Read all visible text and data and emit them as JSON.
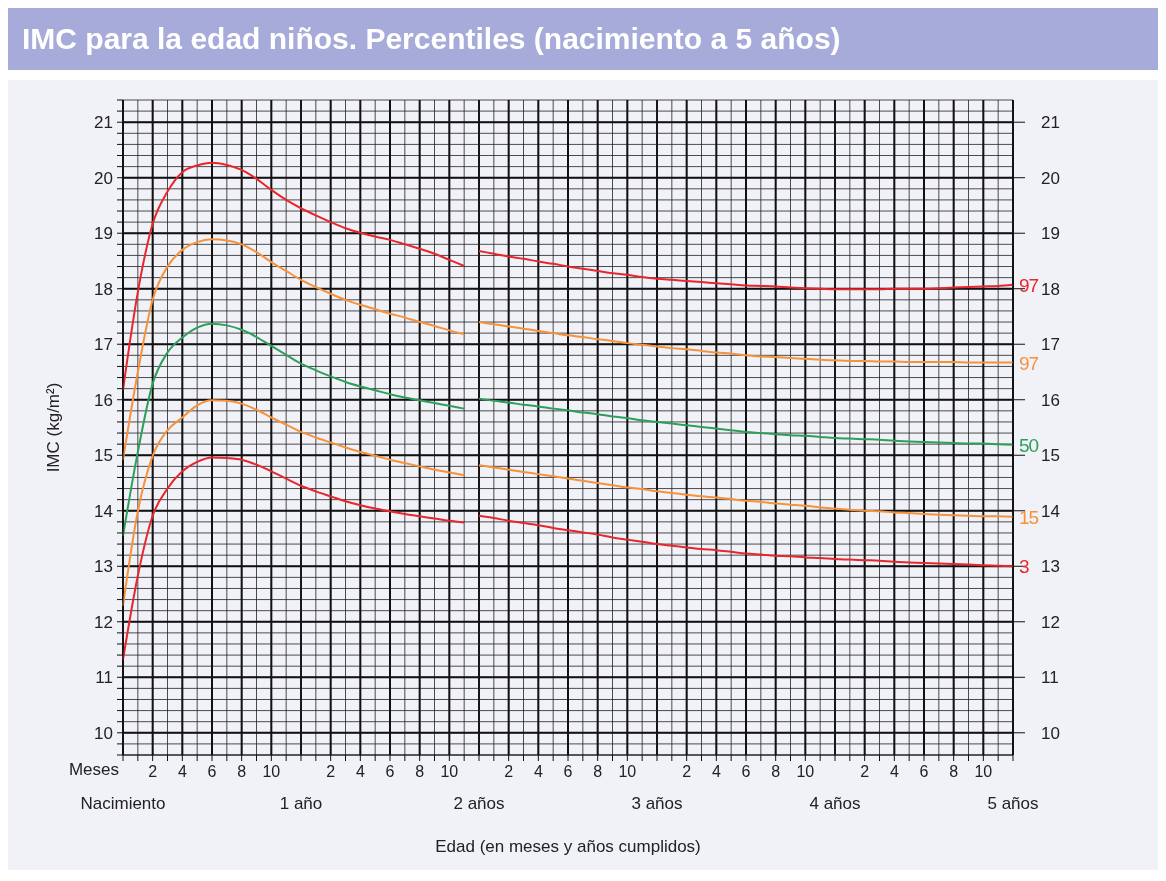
{
  "chart_data": {
    "type": "line",
    "title": "IMC para la edad niños. Percentiles (nacimiento a 5 años)",
    "xlabel": "Edad (en meses y años cumplidos)",
    "ylabel": "IMC (kg/m²)",
    "annotations": [
      "Meses"
    ],
    "categories": [
      null,
      null,
      "2",
      null,
      "4",
      null,
      "6",
      null,
      "8",
      null,
      "10",
      null,
      null,
      null,
      "2",
      null,
      "4",
      null,
      "6",
      null,
      "8",
      null,
      "10",
      null,
      null,
      null,
      "2",
      null,
      "4",
      null,
      "6",
      null,
      "8",
      null,
      "10",
      null,
      null,
      null,
      "2",
      null,
      "4",
      null,
      "6",
      null,
      "8",
      null,
      "10",
      null,
      null,
      null,
      "2",
      null,
      "4",
      null,
      "6",
      null,
      "8",
      null,
      "10",
      null,
      null
    ],
    "series": [
      {
        "color": "#e8262b",
        "values": [
          16.18,
          17.94,
          19.17,
          19.75,
          20.1,
          20.22,
          20.27,
          20.23,
          20.14,
          19.98,
          19.78,
          19.6,
          19.45,
          19.32,
          19.2,
          19.09,
          19.01,
          18.94,
          18.88,
          18.8,
          18.72,
          18.63,
          18.52,
          18.41,
          null,
          null,
          null,
          null,
          null,
          null,
          null,
          null,
          null,
          null,
          null,
          null,
          null,
          null,
          null,
          null,
          null,
          null,
          null,
          null,
          null,
          null,
          null,
          null,
          null,
          null,
          null,
          null,
          null,
          null,
          null,
          null,
          null,
          null,
          null,
          null,
          null
        ]
      },
      {
        "name": "97",
        "color": "#e8262b",
        "values": [
          null,
          null,
          null,
          null,
          null,
          null,
          null,
          null,
          null,
          null,
          null,
          null,
          null,
          null,
          null,
          null,
          null,
          null,
          null,
          null,
          null,
          null,
          null,
          null,
          18.68,
          18.63,
          18.58,
          18.54,
          18.49,
          18.45,
          18.4,
          18.36,
          18.32,
          18.28,
          18.25,
          18.21,
          18.18,
          18.16,
          18.14,
          18.12,
          18.1,
          18.08,
          18.06,
          18.05,
          18.04,
          18.02,
          18.01,
          18.0,
          17.99,
          17.99,
          17.99,
          17.99,
          18.0,
          18.0,
          18.0,
          18.01,
          18.02,
          18.03,
          18.04,
          18.05,
          18.07
        ]
      },
      {
        "color": "#f7923a",
        "values": [
          14.92,
          16.5,
          17.8,
          18.4,
          18.7,
          18.84,
          18.89,
          18.87,
          18.8,
          18.66,
          18.48,
          18.32,
          18.16,
          18.03,
          17.91,
          17.8,
          17.71,
          17.63,
          17.55,
          17.48,
          17.4,
          17.33,
          17.25,
          17.18,
          null,
          null,
          null,
          null,
          null,
          null,
          null,
          null,
          null,
          null,
          null,
          null,
          null,
          null,
          null,
          null,
          null,
          null,
          null,
          null,
          null,
          null,
          null,
          null,
          null,
          null,
          null,
          null,
          null,
          null,
          null,
          null,
          null,
          null,
          null,
          null,
          null
        ]
      },
      {
        "name": "97",
        "color": "#f7923a",
        "values": [
          null,
          null,
          null,
          null,
          null,
          null,
          null,
          null,
          null,
          null,
          null,
          null,
          null,
          null,
          null,
          null,
          null,
          null,
          null,
          null,
          null,
          null,
          null,
          null,
          17.4,
          17.36,
          17.32,
          17.28,
          17.24,
          17.2,
          17.16,
          17.13,
          17.09,
          17.06,
          17.02,
          16.99,
          16.96,
          16.93,
          16.91,
          16.88,
          16.85,
          16.83,
          16.8,
          16.78,
          16.77,
          16.75,
          16.74,
          16.72,
          16.71,
          16.7,
          16.7,
          16.69,
          16.69,
          16.68,
          16.68,
          16.68,
          16.68,
          16.67,
          16.67,
          16.67,
          16.67
        ]
      },
      {
        "color": "#2e9e5b",
        "values": [
          13.55,
          15.06,
          16.29,
          16.85,
          17.12,
          17.3,
          17.37,
          17.34,
          17.26,
          17.13,
          16.97,
          16.81,
          16.65,
          16.53,
          16.42,
          16.32,
          16.24,
          16.17,
          16.1,
          16.04,
          15.99,
          15.94,
          15.89,
          15.84,
          null,
          null,
          null,
          null,
          null,
          null,
          null,
          null,
          null,
          null,
          null,
          null,
          null,
          null,
          null,
          null,
          null,
          null,
          null,
          null,
          null,
          null,
          null,
          null,
          null,
          null,
          null,
          null,
          null,
          null,
          null,
          null,
          null,
          null,
          null,
          null,
          null
        ]
      },
      {
        "name": "50",
        "color": "#2e9e5b",
        "values": [
          null,
          null,
          null,
          null,
          null,
          null,
          null,
          null,
          null,
          null,
          null,
          null,
          null,
          null,
          null,
          null,
          null,
          null,
          null,
          null,
          null,
          null,
          null,
          null,
          16.02,
          15.98,
          15.95,
          15.91,
          15.88,
          15.84,
          15.81,
          15.77,
          15.74,
          15.7,
          15.67,
          15.63,
          15.6,
          15.57,
          15.54,
          15.51,
          15.48,
          15.45,
          15.42,
          15.4,
          15.38,
          15.36,
          15.35,
          15.33,
          15.31,
          15.3,
          15.29,
          15.28,
          15.26,
          15.25,
          15.24,
          15.23,
          15.22,
          15.21,
          15.21,
          15.2,
          15.19
        ]
      },
      {
        "color": "#f7923a",
        "values": [
          12.29,
          13.99,
          14.99,
          15.45,
          15.68,
          15.9,
          15.99,
          15.98,
          15.93,
          15.82,
          15.68,
          15.55,
          15.42,
          15.32,
          15.23,
          15.14,
          15.06,
          14.99,
          14.92,
          14.86,
          14.8,
          14.74,
          14.69,
          14.64,
          null,
          null,
          null,
          null,
          null,
          null,
          null,
          null,
          null,
          null,
          null,
          null,
          null,
          null,
          null,
          null,
          null,
          null,
          null,
          null,
          null,
          null,
          null,
          null,
          null,
          null,
          null,
          null,
          null,
          null,
          null,
          null,
          null,
          null,
          null,
          null,
          null
        ]
      },
      {
        "name": "15",
        "color": "#f7923a",
        "values": [
          null,
          null,
          null,
          null,
          null,
          null,
          null,
          null,
          null,
          null,
          null,
          null,
          null,
          null,
          null,
          null,
          null,
          null,
          null,
          null,
          null,
          null,
          null,
          null,
          14.82,
          14.78,
          14.74,
          14.7,
          14.66,
          14.62,
          14.58,
          14.54,
          14.5,
          14.46,
          14.42,
          14.39,
          14.35,
          14.32,
          14.29,
          14.26,
          14.24,
          14.21,
          14.18,
          14.16,
          14.13,
          14.11,
          14.09,
          14.06,
          14.04,
          14.02,
          14.0,
          13.99,
          13.97,
          13.96,
          13.94,
          13.93,
          13.92,
          13.91,
          13.9,
          13.9,
          13.89
        ]
      },
      {
        "color": "#e8262b",
        "values": [
          11.32,
          12.83,
          13.91,
          14.4,
          14.71,
          14.88,
          14.96,
          14.95,
          14.92,
          14.83,
          14.71,
          14.58,
          14.45,
          14.35,
          14.26,
          14.17,
          14.1,
          14.04,
          13.99,
          13.94,
          13.9,
          13.86,
          13.82,
          13.79,
          null,
          null,
          null,
          null,
          null,
          null,
          null,
          null,
          null,
          null,
          null,
          null,
          null,
          null,
          null,
          null,
          null,
          null,
          null,
          null,
          null,
          null,
          null,
          null,
          null,
          null,
          null,
          null,
          null,
          null,
          null,
          null,
          null,
          null,
          null,
          null,
          null
        ]
      },
      {
        "name": "3",
        "color": "#e8262b",
        "values": [
          null,
          null,
          null,
          null,
          null,
          null,
          null,
          null,
          null,
          null,
          null,
          null,
          null,
          null,
          null,
          null,
          null,
          null,
          null,
          null,
          null,
          null,
          null,
          null,
          13.91,
          13.87,
          13.82,
          13.78,
          13.74,
          13.69,
          13.65,
          13.61,
          13.57,
          13.52,
          13.48,
          13.44,
          13.4,
          13.37,
          13.34,
          13.31,
          13.29,
          13.26,
          13.23,
          13.21,
          13.19,
          13.18,
          13.16,
          13.15,
          13.13,
          13.12,
          13.11,
          13.1,
          13.08,
          13.07,
          13.06,
          13.05,
          13.04,
          13.03,
          13.02,
          13.01,
          13.0
        ]
      }
    ],
    "x2lim": [
      0,
      5
    ],
    "x2ticks": [
      {
        "value": 0,
        "label": "Nacimiento"
      },
      {
        "value": 1,
        "label": "1 año"
      },
      {
        "value": 2,
        "label": "2 años"
      },
      {
        "value": 3,
        "label": "3 años"
      },
      {
        "value": 4,
        "label": "4 años"
      },
      {
        "value": 5,
        "label": "5 años"
      }
    ],
    "ylim": [
      9.6,
      21.4
    ],
    "yticks": [
      {
        "value": 9.6,
        "label": null
      },
      {
        "value": 9.8,
        "label": null
      },
      10,
      {
        "value": 10.2,
        "label": null
      },
      {
        "value": 10.4,
        "label": null
      },
      {
        "value": 10.6,
        "label": null
      },
      {
        "value": 10.8,
        "label": null
      },
      11,
      {
        "value": 11.2,
        "label": null
      },
      {
        "value": 11.4,
        "label": null
      },
      {
        "value": 11.6,
        "label": null
      },
      {
        "value": 11.8,
        "label": null
      },
      12,
      {
        "value": 12.2,
        "label": null
      },
      {
        "value": 12.4,
        "label": null
      },
      {
        "value": 12.6,
        "label": null
      },
      {
        "value": 12.8,
        "label": null
      },
      13,
      {
        "value": 13.2,
        "label": null
      },
      {
        "value": 13.4,
        "label": null
      },
      {
        "value": 13.6,
        "label": null
      },
      {
        "value": 13.8,
        "label": null
      },
      14,
      {
        "value": 14.2,
        "label": null
      },
      {
        "value": 14.4,
        "label": null
      },
      {
        "value": 14.6,
        "label": null
      },
      {
        "value": 14.8,
        "label": null
      },
      15,
      {
        "value": 15.2,
        "label": null
      },
      {
        "value": 15.4,
        "label": null
      },
      {
        "value": 15.6,
        "label": null
      },
      {
        "value": 15.8,
        "label": null
      },
      16,
      {
        "value": 16.2,
        "label": null
      },
      {
        "value": 16.4,
        "label": null
      },
      {
        "value": 16.6,
        "label": null
      },
      {
        "value": 16.8,
        "label": null
      },
      17,
      {
        "value": 17.2,
        "label": null
      },
      {
        "value": 17.4,
        "label": null
      },
      {
        "value": 17.6,
        "label": null
      },
      {
        "value": 17.8,
        "label": null
      },
      18,
      {
        "value": 18.2,
        "label": null
      },
      {
        "value": 18.4,
        "label": null
      },
      {
        "value": 18.6,
        "label": null
      },
      {
        "value": 18.8,
        "label": null
      },
      19,
      {
        "value": 19.2,
        "label": null
      },
      {
        "value": 19.4,
        "label": null
      },
      {
        "value": 19.6,
        "label": null
      },
      {
        "value": 19.8,
        "label": null
      },
      20,
      {
        "value": 20.2,
        "label": null
      },
      {
        "value": 20.4,
        "label": null
      },
      {
        "value": 20.6,
        "label": null
      },
      {
        "value": 20.8,
        "label": null
      },
      21,
      {
        "value": 21.2,
        "label": null
      },
      {
        "value": 21.4,
        "label": null
      }
    ],
    "y2lim": [
      9.6,
      21.4
    ],
    "y2ticks": [
      10,
      11,
      12,
      13,
      14,
      15,
      16,
      17,
      18,
      19,
      20,
      21
    ],
    "grid": true,
    "marker": "none",
    "line_style": "solid"
  }
}
